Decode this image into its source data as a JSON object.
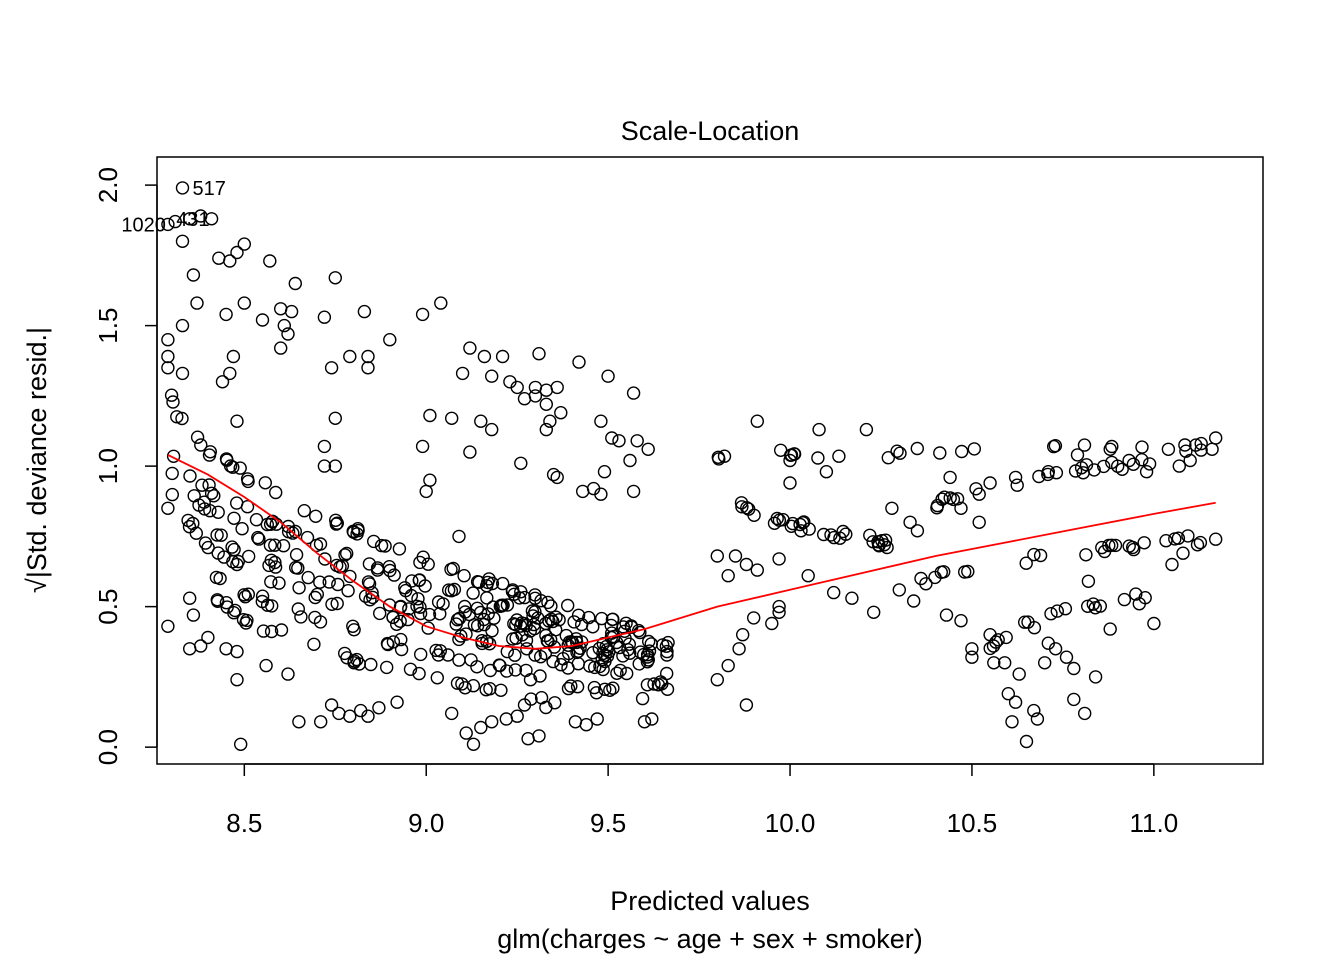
{
  "chart_data": {
    "type": "scatter",
    "title": "Scale-Location",
    "xlabel": "Predicted values",
    "subtitle": "glm(charges ~ age + sex + smoker)",
    "ylabel_prefix": "√",
    "ylabel": "|Std. deviance resid.|",
    "xlim": [
      8.26,
      11.3
    ],
    "ylim": [
      -0.06,
      2.1
    ],
    "x_ticks": [
      {
        "value": 8.5,
        "label": "8.5"
      },
      {
        "value": 9.0,
        "label": "9.0"
      },
      {
        "value": 9.5,
        "label": "9.5"
      },
      {
        "value": 10.0,
        "label": "10.0"
      },
      {
        "value": 10.5,
        "label": "10.5"
      },
      {
        "value": 11.0,
        "label": "11.0"
      }
    ],
    "y_ticks": [
      {
        "value": 0.0,
        "label": "0.0"
      },
      {
        "value": 0.5,
        "label": "0.5"
      },
      {
        "value": 1.0,
        "label": "1.0"
      },
      {
        "value": 1.5,
        "label": "1.5"
      },
      {
        "value": 2.0,
        "label": "2.0"
      }
    ],
    "point_style": "open-circle",
    "point_color": "#000000",
    "smooth_color": "#ff0000",
    "grid": false,
    "bands": [
      {
        "x0": 8.3,
        "y0": 1.24,
        "x1": 9.67,
        "y1": 0.38,
        "n": 70
      },
      {
        "x0": 8.3,
        "y0": 1.08,
        "x1": 9.67,
        "y1": 0.34,
        "n": 70
      },
      {
        "x0": 8.3,
        "y0": 1.0,
        "x1": 9.67,
        "y1": 0.3,
        "n": 70
      },
      {
        "x0": 8.3,
        "y0": 0.9,
        "x1": 9.67,
        "y1": 0.27,
        "n": 60
      },
      {
        "x0": 8.33,
        "y0": 0.82,
        "x1": 9.67,
        "y1": 0.22,
        "n": 55
      },
      {
        "x0": 8.35,
        "y0": 0.7,
        "x1": 9.6,
        "y1": 0.17,
        "n": 45
      },
      {
        "x0": 8.42,
        "y0": 0.55,
        "x1": 9.4,
        "y1": 0.14,
        "n": 35
      },
      {
        "x0": 9.8,
        "y0": 1.03,
        "x1": 11.17,
        "y1": 1.07,
        "n": 25
      },
      {
        "x0": 10.4,
        "y0": 0.86,
        "x1": 11.0,
        "y1": 1.02,
        "n": 25
      },
      {
        "x0": 9.85,
        "y0": 0.88,
        "x1": 10.3,
        "y1": 0.72,
        "n": 30
      },
      {
        "x0": 10.3,
        "y0": 0.55,
        "x1": 11.17,
        "y1": 0.75,
        "n": 25
      },
      {
        "x0": 10.55,
        "y0": 0.35,
        "x1": 11.0,
        "y1": 0.55,
        "n": 18
      }
    ],
    "points": [
      [
        8.33,
        1.99
      ],
      [
        8.29,
        1.86
      ],
      [
        8.31,
        1.87
      ],
      [
        8.35,
        1.88
      ],
      [
        8.38,
        1.89
      ],
      [
        8.41,
        1.88
      ],
      [
        8.33,
        1.8
      ],
      [
        8.5,
        1.79
      ],
      [
        8.48,
        1.76
      ],
      [
        8.46,
        1.73
      ],
      [
        8.43,
        1.74
      ],
      [
        8.57,
        1.73
      ],
      [
        8.36,
        1.68
      ],
      [
        8.75,
        1.67
      ],
      [
        8.64,
        1.65
      ],
      [
        8.37,
        1.58
      ],
      [
        8.5,
        1.58
      ],
      [
        8.6,
        1.56
      ],
      [
        8.63,
        1.55
      ],
      [
        8.83,
        1.55
      ],
      [
        8.45,
        1.54
      ],
      [
        8.55,
        1.52
      ],
      [
        8.72,
        1.53
      ],
      [
        8.61,
        1.5
      ],
      [
        8.62,
        1.47
      ],
      [
        8.33,
        1.5
      ],
      [
        8.29,
        1.45
      ],
      [
        8.6,
        1.42
      ],
      [
        8.29,
        1.39
      ],
      [
        8.47,
        1.39
      ],
      [
        8.29,
        1.35
      ],
      [
        8.33,
        1.33
      ],
      [
        8.46,
        1.33
      ],
      [
        8.44,
        1.3
      ],
      [
        8.74,
        1.35
      ],
      [
        8.79,
        1.39
      ],
      [
        8.84,
        1.39
      ],
      [
        8.84,
        1.35
      ],
      [
        8.9,
        1.45
      ],
      [
        8.99,
        1.54
      ],
      [
        9.04,
        1.58
      ],
      [
        9.12,
        1.42
      ],
      [
        9.16,
        1.39
      ],
      [
        9.21,
        1.39
      ],
      [
        9.25,
        1.28
      ],
      [
        9.31,
        1.4
      ],
      [
        9.42,
        1.37
      ],
      [
        9.36,
        1.28
      ],
      [
        9.5,
        1.32
      ],
      [
        9.57,
        1.26
      ],
      [
        9.1,
        1.33
      ],
      [
        9.18,
        1.32
      ],
      [
        9.23,
        1.3
      ],
      [
        9.3,
        1.28
      ],
      [
        9.27,
        1.24
      ],
      [
        9.33,
        1.27
      ],
      [
        9.3,
        1.25
      ],
      [
        9.33,
        1.22
      ],
      [
        9.37,
        1.19
      ],
      [
        9.34,
        1.16
      ],
      [
        9.33,
        1.13
      ],
      [
        9.15,
        1.16
      ],
      [
        9.18,
        1.13
      ],
      [
        9.48,
        1.16
      ],
      [
        9.51,
        1.1
      ],
      [
        9.53,
        1.09
      ],
      [
        9.58,
        1.09
      ],
      [
        9.61,
        1.06
      ],
      [
        9.56,
        1.02
      ],
      [
        9.49,
        0.98
      ],
      [
        9.35,
        0.97
      ],
      [
        9.36,
        0.96
      ],
      [
        9.43,
        0.91
      ],
      [
        9.46,
        0.92
      ],
      [
        9.48,
        0.9
      ],
      [
        9.57,
        0.91
      ],
      [
        9.26,
        1.01
      ],
      [
        9.01,
        1.18
      ],
      [
        9.07,
        1.17
      ],
      [
        9.12,
        1.05
      ],
      [
        8.99,
        1.07
      ],
      [
        9.01,
        0.95
      ],
      [
        9.0,
        0.91
      ],
      [
        9.09,
        0.75
      ],
      [
        8.75,
        1.17
      ],
      [
        8.72,
        1.07
      ],
      [
        8.72,
        1.0
      ],
      [
        8.75,
        1.0
      ],
      [
        8.48,
        1.16
      ],
      [
        8.29,
        0.85
      ],
      [
        8.29,
        0.43
      ],
      [
        8.35,
        0.53
      ],
      [
        8.36,
        0.47
      ],
      [
        8.35,
        0.35
      ],
      [
        8.38,
        0.36
      ],
      [
        8.4,
        0.39
      ],
      [
        8.45,
        0.35
      ],
      [
        8.48,
        0.34
      ],
      [
        8.48,
        0.24
      ],
      [
        8.49,
        0.01
      ],
      [
        8.56,
        0.29
      ],
      [
        8.62,
        0.26
      ],
      [
        8.65,
        0.09
      ],
      [
        8.71,
        0.09
      ],
      [
        8.74,
        0.15
      ],
      [
        8.76,
        0.12
      ],
      [
        8.79,
        0.11
      ],
      [
        8.82,
        0.13
      ],
      [
        8.84,
        0.11
      ],
      [
        8.87,
        0.14
      ],
      [
        8.92,
        0.16
      ],
      [
        9.07,
        0.12
      ],
      [
        9.11,
        0.05
      ],
      [
        9.13,
        0.01
      ],
      [
        9.15,
        0.07
      ],
      [
        9.18,
        0.09
      ],
      [
        9.22,
        0.1
      ],
      [
        9.25,
        0.11
      ],
      [
        9.28,
        0.03
      ],
      [
        9.31,
        0.04
      ],
      [
        9.41,
        0.09
      ],
      [
        9.44,
        0.08
      ],
      [
        9.47,
        0.1
      ],
      [
        9.62,
        0.1
      ],
      [
        9.6,
        0.09
      ],
      [
        9.27,
        0.15
      ],
      [
        9.8,
        0.68
      ],
      [
        9.85,
        0.68
      ],
      [
        9.88,
        0.65
      ],
      [
        9.91,
        0.63
      ],
      [
        9.83,
        0.61
      ],
      [
        9.8,
        0.24
      ],
      [
        9.83,
        0.29
      ],
      [
        9.86,
        0.35
      ],
      [
        9.87,
        0.4
      ],
      [
        9.9,
        0.46
      ],
      [
        9.88,
        0.15
      ],
      [
        9.95,
        0.44
      ],
      [
        9.97,
        0.48
      ],
      [
        9.97,
        0.5
      ],
      [
        9.97,
        0.67
      ],
      [
        9.91,
        1.16
      ],
      [
        10.08,
        1.13
      ],
      [
        10.21,
        1.13
      ],
      [
        10.27,
        1.03
      ],
      [
        10.1,
        0.98
      ],
      [
        10.0,
        0.94
      ],
      [
        10.0,
        1.02
      ],
      [
        10.12,
        0.55
      ],
      [
        10.17,
        0.53
      ],
      [
        10.23,
        0.48
      ],
      [
        10.43,
        0.47
      ],
      [
        10.47,
        0.45
      ],
      [
        10.5,
        0.35
      ],
      [
        10.5,
        0.32
      ],
      [
        10.55,
        0.4
      ],
      [
        10.56,
        0.3
      ],
      [
        10.6,
        0.19
      ],
      [
        10.59,
        0.3
      ],
      [
        10.63,
        0.26
      ],
      [
        10.62,
        0.16
      ],
      [
        10.61,
        0.09
      ],
      [
        10.65,
        0.02
      ],
      [
        10.67,
        0.13
      ],
      [
        10.68,
        0.1
      ],
      [
        10.7,
        0.3
      ],
      [
        10.71,
        0.37
      ],
      [
        10.73,
        0.35
      ],
      [
        10.76,
        0.32
      ],
      [
        10.78,
        0.28
      ],
      [
        10.78,
        0.17
      ],
      [
        10.81,
        0.12
      ],
      [
        10.84,
        0.25
      ],
      [
        10.88,
        0.42
      ],
      [
        10.82,
        0.59
      ],
      [
        10.96,
        0.51
      ],
      [
        11.0,
        0.44
      ],
      [
        11.05,
        0.65
      ],
      [
        11.08,
        0.69
      ],
      [
        11.12,
        0.72
      ],
      [
        11.17,
        0.74
      ],
      [
        11.17,
        1.1
      ],
      [
        11.16,
        1.06
      ],
      [
        11.13,
        1.08
      ],
      [
        11.1,
        1.02
      ],
      [
        11.07,
        1.0
      ],
      [
        11.04,
        1.06
      ],
      [
        10.98,
        0.98
      ],
      [
        10.88,
        1.06
      ],
      [
        10.79,
        1.04
      ],
      [
        10.71,
        0.98
      ],
      [
        10.62,
        0.96
      ],
      [
        10.55,
        0.94
      ],
      [
        10.52,
        0.9
      ],
      [
        10.44,
        0.96
      ],
      [
        10.35,
        0.77
      ],
      [
        10.28,
        0.85
      ],
      [
        10.34,
        0.52
      ],
      [
        10.36,
        0.6
      ],
      [
        10.33,
        0.8
      ],
      [
        10.47,
        0.85
      ],
      [
        10.52,
        0.8
      ],
      [
        10.05,
        0.61
      ],
      [
        10.03,
        0.77
      ]
    ],
    "smooth_x": [
      8.29,
      8.4,
      8.5,
      8.6,
      8.7,
      8.8,
      8.9,
      9.0,
      9.1,
      9.2,
      9.3,
      9.4,
      9.5,
      9.6,
      9.8,
      10.0,
      10.2,
      10.4,
      10.6,
      10.8,
      11.0,
      11.17
    ],
    "smooth_y": [
      1.04,
      0.97,
      0.89,
      0.8,
      0.69,
      0.59,
      0.5,
      0.43,
      0.39,
      0.36,
      0.35,
      0.36,
      0.39,
      0.42,
      0.5,
      0.56,
      0.62,
      0.68,
      0.73,
      0.78,
      0.83,
      0.87
    ],
    "point_labels": [
      {
        "x": 8.33,
        "y": 1.99,
        "text": "517",
        "anchor": "start"
      },
      {
        "x": 8.29,
        "y": 1.86,
        "text": "1020",
        "anchor": "end"
      },
      {
        "x": 8.41,
        "y": 1.88,
        "text": "431",
        "anchor": "end"
      }
    ]
  }
}
